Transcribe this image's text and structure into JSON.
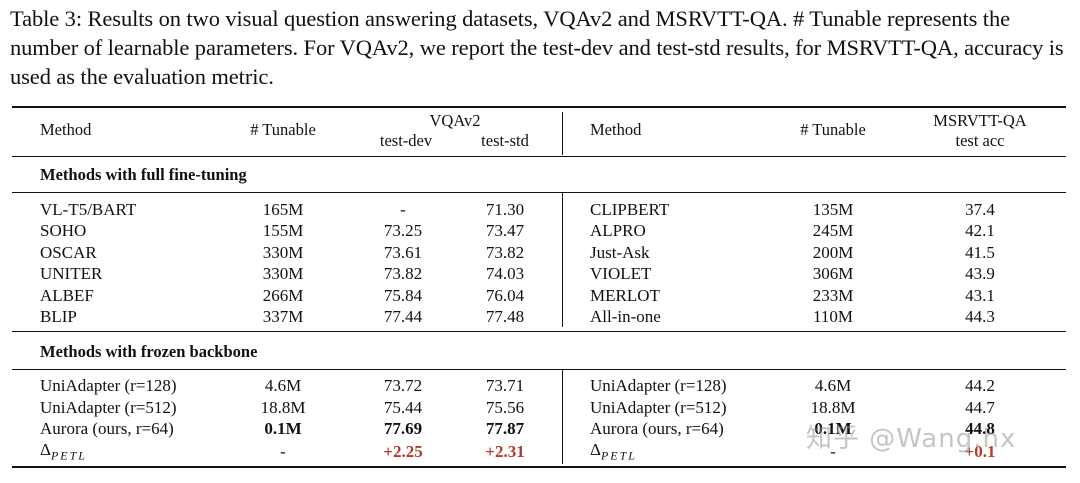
{
  "caption": "Table 3: Results on two visual question answering datasets, VQAv2 and MSRVTT-QA. # Tunable represents the number of learnable parameters. For VQAv2, we report the test-dev and test-std results, for MSRVTT-QA, accuracy is used as the evaluation metric.",
  "header": {
    "method_left": "Method",
    "tunable_left": "# Tunable",
    "vqa_group": "VQAv2",
    "test_dev": "test-dev",
    "test_std": "test-std",
    "method_right": "Method",
    "tunable_right": "# Tunable",
    "msr_group": "MSRVTT-QA",
    "test_acc": "test acc"
  },
  "sections": {
    "full": "Methods with full fine-tuning",
    "frozen": "Methods with frozen backbone"
  },
  "full_rows": [
    {
      "m": "VL-T5/BART",
      "t": "165M",
      "dev": "-",
      "std": "71.30",
      "m2": "CLIPBERT",
      "t2": "135M",
      "acc": "37.4"
    },
    {
      "m": "SOHO",
      "t": "155M",
      "dev": "73.25",
      "std": "73.47",
      "m2": "ALPRO",
      "t2": "245M",
      "acc": "42.1"
    },
    {
      "m": "OSCAR",
      "t": "330M",
      "dev": "73.61",
      "std": "73.82",
      "m2": "Just-Ask",
      "t2": "200M",
      "acc": "41.5"
    },
    {
      "m": "UNITER",
      "t": "330M",
      "dev": "73.82",
      "std": "74.03",
      "m2": "VIOLET",
      "t2": "306M",
      "acc": "43.9"
    },
    {
      "m": "ALBEF",
      "t": "266M",
      "dev": "75.84",
      "std": "76.04",
      "m2": "MERLOT",
      "t2": "233M",
      "acc": "43.1"
    },
    {
      "m": "BLIP",
      "t": "337M",
      "dev": "77.44",
      "std": "77.48",
      "m2": "All-in-one",
      "t2": "110M",
      "acc": "44.3"
    }
  ],
  "frozen_rows": [
    {
      "m": "UniAdapter (r=128)",
      "t": "4.6M",
      "dev": "73.72",
      "std": "73.71",
      "m2": "UniAdapter (r=128)",
      "t2": "4.6M",
      "acc": "44.2"
    },
    {
      "m": "UniAdapter (r=512)",
      "t": "18.8M",
      "dev": "75.44",
      "std": "75.56",
      "m2": "UniAdapter (r=512)",
      "t2": "18.8M",
      "acc": "44.7"
    },
    {
      "m": "Aurora (ours, r=64)",
      "t": "0.1M",
      "dev": "77.69",
      "std": "77.87",
      "m2": "Aurora (ours, r=64)",
      "t2": "0.1M",
      "acc": "44.8"
    }
  ],
  "delta_row": {
    "symbol": "Δ",
    "sub": "PETL",
    "t": "-",
    "dev": "+2.25",
    "std": "+2.31",
    "t2": "-",
    "acc": "+0.1"
  },
  "watermark": "知乎 @Wang.hx",
  "colors": {
    "improvement": "#b5392c"
  }
}
